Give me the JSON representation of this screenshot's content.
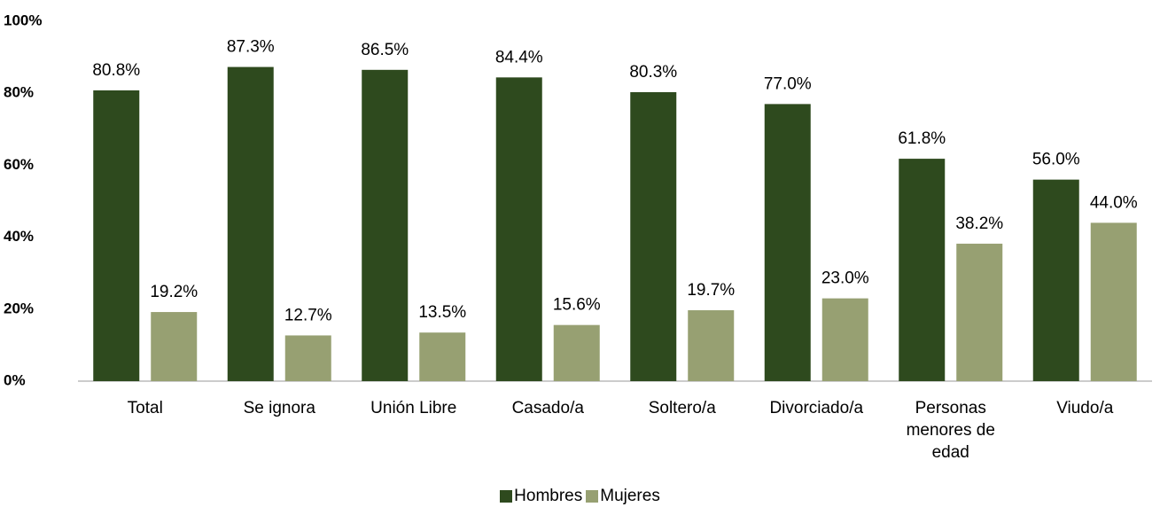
{
  "chart_data": {
    "type": "bar",
    "categories": [
      "Total",
      "Se ignora",
      "Unión Libre",
      "Casado/a",
      "Soltero/a",
      "Divorciado/a",
      "Personas menores de edad",
      "Viudo/a"
    ],
    "series": [
      {
        "name": "Hombres",
        "color": "#2e4a1e",
        "values": [
          80.8,
          87.3,
          86.5,
          84.4,
          80.3,
          77.0,
          61.8,
          56.0
        ],
        "value_labels": [
          "80.8%",
          "87.3%",
          "86.5%",
          "84.4%",
          "80.3%",
          "77.0%",
          "61.8%",
          "56.0%"
        ]
      },
      {
        "name": "Mujeres",
        "color": "#97a072",
        "values": [
          19.2,
          12.7,
          13.5,
          15.6,
          19.7,
          23.0,
          38.2,
          44.0
        ],
        "value_labels": [
          "19.2%",
          "12.7%",
          "13.5%",
          "15.6%",
          "19.7%",
          "23.0%",
          "38.2%",
          "44.0%"
        ]
      }
    ],
    "ylim": [
      0,
      100
    ],
    "yticks": [
      {
        "value": 0,
        "label": "0%"
      },
      {
        "value": 20,
        "label": "20%"
      },
      {
        "value": 40,
        "label": "40%"
      },
      {
        "value": 60,
        "label": "60%"
      },
      {
        "value": 80,
        "label": "80%"
      },
      {
        "value": 100,
        "label": "100%"
      }
    ],
    "legend": "bottom",
    "grid": false
  }
}
